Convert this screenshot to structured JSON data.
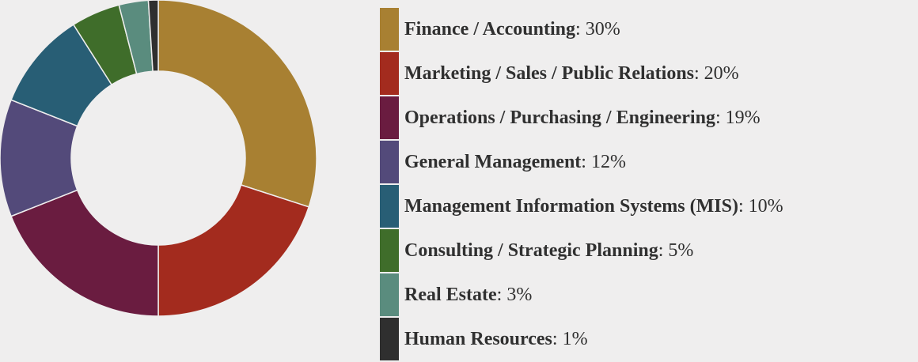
{
  "chart_data": {
    "type": "pie",
    "variant": "donut",
    "legend_position": "right",
    "slices": [
      {
        "label": "Finance / Accounting",
        "value": 30,
        "display": "30%",
        "color": "#a88032"
      },
      {
        "label": "Marketing / Sales / Public Relations",
        "value": 20,
        "display": "20%",
        "color": "#a32b1e"
      },
      {
        "label": "Operations / Purchasing / Engineering",
        "value": 19,
        "display": "19%",
        "color": "#6a1c40"
      },
      {
        "label": "General Management",
        "value": 12,
        "display": "12%",
        "color": "#534a7a"
      },
      {
        "label": "Management Information Systems (MIS)",
        "value": 10,
        "display": "10%",
        "color": "#285e75"
      },
      {
        "label": "Consulting / Strategic Planning",
        "value": 5,
        "display": "5%",
        "color": "#3f6d2a"
      },
      {
        "label": "Real Estate",
        "value": 3,
        "display": "3%",
        "color": "#5a8c7e"
      },
      {
        "label": "Human Resources",
        "value": 1,
        "display": "1%",
        "color": "#2f2f2f"
      }
    ]
  }
}
